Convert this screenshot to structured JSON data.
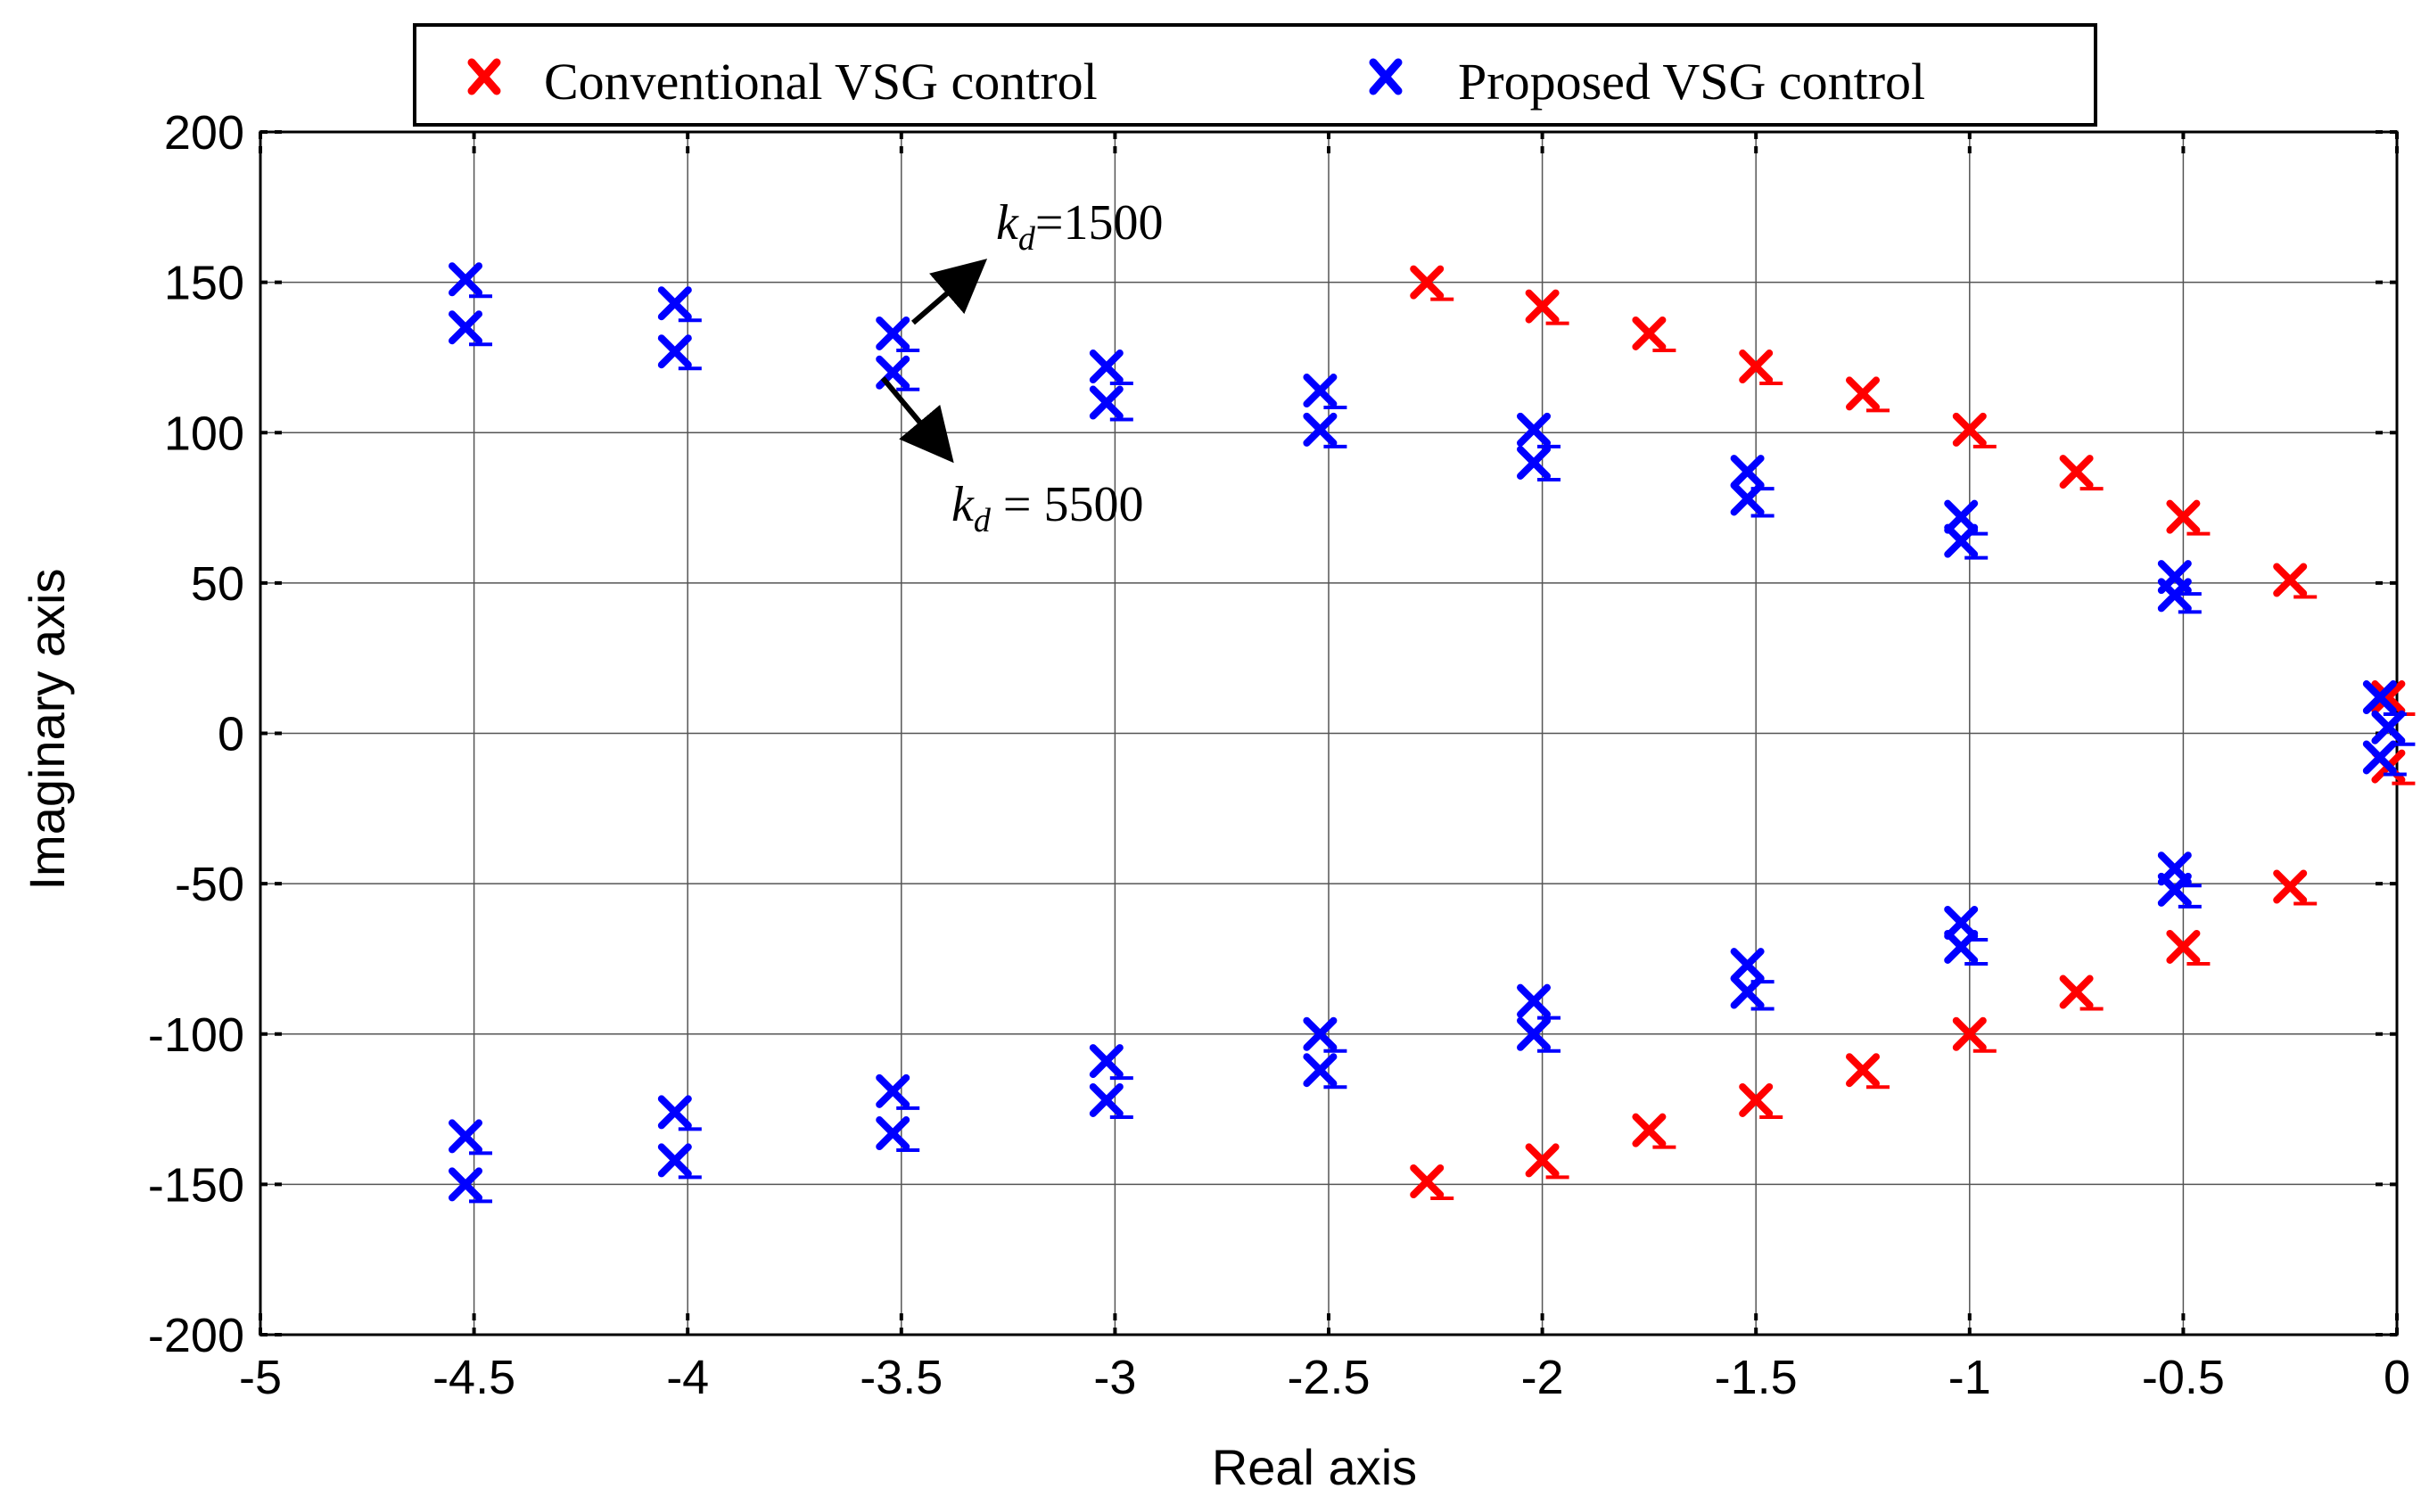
{
  "chart_data": {
    "type": "scatter",
    "title": "",
    "xlabel": "Real axis",
    "ylabel": "Imaginary axis",
    "xlim": [
      -5,
      0
    ],
    "ylim": [
      -200,
      200
    ],
    "xticks": [
      -5,
      -4.5,
      -4,
      -3.5,
      -3,
      -2.5,
      -2,
      -1.5,
      -1,
      -0.5,
      0
    ],
    "xtick_labels": [
      "-5",
      "-4.5",
      "-4",
      "-3.5",
      "-3",
      "-2.5",
      "-2",
      "-1.5",
      "-1",
      "-0.5",
      "0"
    ],
    "yticks": [
      200,
      150,
      100,
      50,
      0,
      -50,
      -100,
      -150,
      -200
    ],
    "ytick_labels": [
      "200",
      "150",
      "100",
      "50",
      "0",
      "-50",
      "-100",
      "-150",
      "-200"
    ],
    "grid": true,
    "legend_position": "top",
    "series": [
      {
        "name": "Conventional VSG control",
        "color": "#ff0000",
        "marker": "x",
        "points": [
          [
            -2.27,
            150
          ],
          [
            -2.0,
            142
          ],
          [
            -1.75,
            133
          ],
          [
            -1.5,
            122
          ],
          [
            -1.25,
            113
          ],
          [
            -1.0,
            101
          ],
          [
            -0.75,
            87
          ],
          [
            -0.5,
            72
          ],
          [
            -0.25,
            51
          ],
          [
            -0.02,
            12
          ],
          [
            -0.02,
            -11
          ],
          [
            -0.25,
            -51
          ],
          [
            -0.5,
            -71
          ],
          [
            -0.75,
            -86
          ],
          [
            -1.0,
            -100
          ],
          [
            -1.25,
            -112
          ],
          [
            -1.5,
            -122
          ],
          [
            -1.75,
            -132
          ],
          [
            -2.0,
            -142
          ],
          [
            -2.27,
            -149
          ]
        ]
      },
      {
        "name": "Proposed VSG control",
        "color": "#0000ff",
        "marker": "x",
        "points": [
          [
            -4.52,
            151
          ],
          [
            -4.52,
            135
          ],
          [
            -4.03,
            143
          ],
          [
            -4.03,
            127
          ],
          [
            -3.52,
            133
          ],
          [
            -3.52,
            120
          ],
          [
            -3.02,
            122
          ],
          [
            -3.02,
            110
          ],
          [
            -2.52,
            114
          ],
          [
            -2.52,
            101
          ],
          [
            -2.02,
            101
          ],
          [
            -2.02,
            90
          ],
          [
            -1.52,
            87
          ],
          [
            -1.52,
            78
          ],
          [
            -1.02,
            72
          ],
          [
            -1.02,
            64
          ],
          [
            -0.52,
            52
          ],
          [
            -0.52,
            46
          ],
          [
            -0.04,
            12
          ],
          [
            -0.02,
            2
          ],
          [
            -0.04,
            -8
          ],
          [
            -0.52,
            -45
          ],
          [
            -0.52,
            -52
          ],
          [
            -1.02,
            -63
          ],
          [
            -1.02,
            -71
          ],
          [
            -1.52,
            -77
          ],
          [
            -1.52,
            -86
          ],
          [
            -2.02,
            -89
          ],
          [
            -2.02,
            -100
          ],
          [
            -2.52,
            -100
          ],
          [
            -2.52,
            -112
          ],
          [
            -3.02,
            -109
          ],
          [
            -3.02,
            -122
          ],
          [
            -3.52,
            -119
          ],
          [
            -3.52,
            -133
          ],
          [
            -4.03,
            -126
          ],
          [
            -4.03,
            -142
          ],
          [
            -4.52,
            -134
          ],
          [
            -4.52,
            -150
          ]
        ]
      }
    ],
    "annotations": [
      {
        "text_main": "k",
        "text_sub": "d",
        "text_rest": "=1500"
      },
      {
        "text_main": "k",
        "text_sub": "d",
        "text_rest": " = 5500"
      }
    ]
  }
}
